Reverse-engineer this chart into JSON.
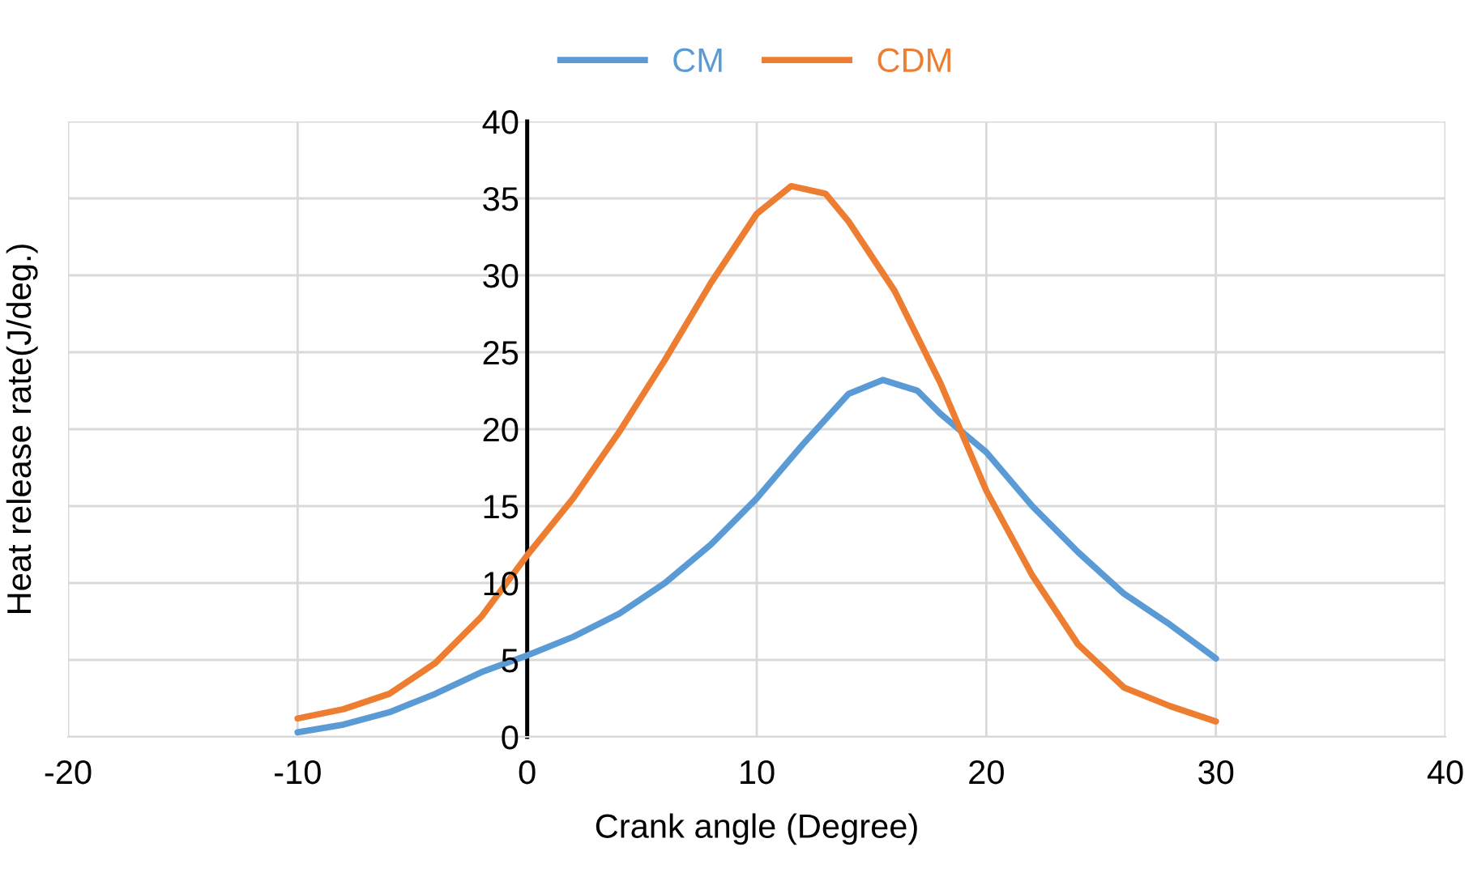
{
  "chart_data": {
    "type": "line",
    "xlabel": "Crank angle (Degree)",
    "ylabel": "Heat release rate(J/deg.)",
    "xlim": [
      -20,
      40
    ],
    "xticks": [
      -20,
      -10,
      0,
      10,
      20,
      30,
      40
    ],
    "ylim": [
      0,
      40
    ],
    "yticks": [
      0,
      5,
      10,
      15,
      20,
      25,
      30,
      35,
      40
    ],
    "grid": true,
    "legend": "top",
    "marker": "none",
    "line_style": "solid",
    "series": [
      {
        "name": "CM",
        "color": "#5b9bd5",
        "x": [
          -10,
          -8,
          -6,
          -4,
          -2,
          0,
          2,
          4,
          6,
          8,
          10,
          12,
          14,
          15.5,
          17,
          18,
          20,
          22,
          24,
          26,
          28,
          30
        ],
        "values": [
          0.3,
          0.8,
          1.6,
          2.8,
          4.2,
          5.3,
          6.5,
          8,
          10,
          12.5,
          15.5,
          19,
          22.3,
          23.2,
          22.5,
          21,
          18.5,
          15,
          12,
          9.3,
          7.3,
          5.1
        ]
      },
      {
        "name": "CDM",
        "color": "#ed7d31",
        "x": [
          -10,
          -8,
          -6,
          -4,
          -2,
          0,
          2,
          4,
          6,
          8,
          10,
          11.5,
          13,
          14,
          16,
          18,
          20,
          22,
          24,
          26,
          28,
          30
        ],
        "values": [
          1.2,
          1.8,
          2.8,
          4.8,
          7.8,
          11.8,
          15.5,
          19.8,
          24.5,
          29.5,
          34,
          35.8,
          35.3,
          33.5,
          29,
          23,
          16,
          10.5,
          6,
          3.2,
          2,
          1
        ]
      }
    ]
  }
}
